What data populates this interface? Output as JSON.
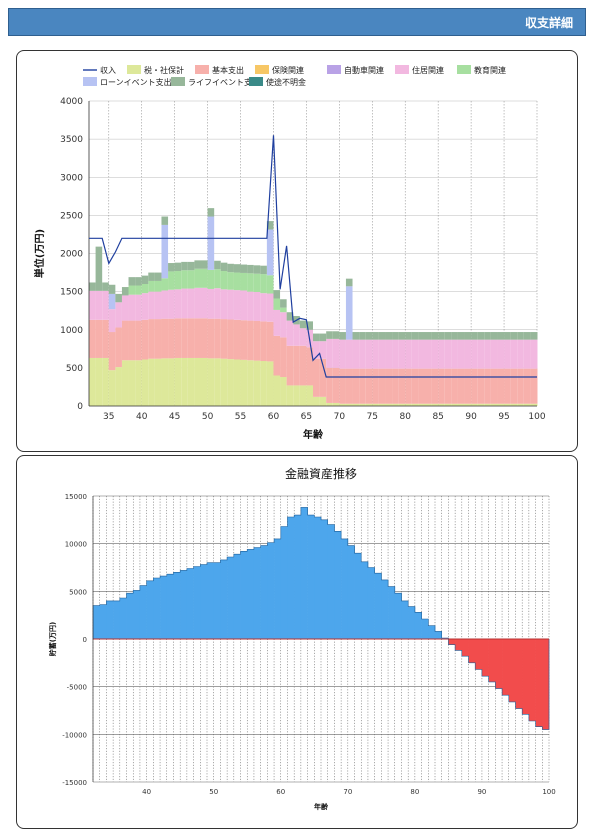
{
  "header": {
    "title": "収支詳細"
  },
  "colors": {
    "header": "#4a86c0",
    "income_line": "#1f3f9f",
    "tax": "#dde89a",
    "basic": "#f7b0ab",
    "insurance": "#f7c766",
    "car": "#b9a2e6",
    "housing": "#f2b8e0",
    "education": "#a7dfa0",
    "loan_event": "#b7c3f3",
    "life_event": "#97b79a",
    "unknown": "#3a8a88",
    "assets_positive": "#4da6ec",
    "assets_negative": "#f24c4c"
  },
  "chart_data": [
    {
      "type": "area",
      "stacked": true,
      "title": "",
      "xlabel": "年齢",
      "ylabel": "単位(万円)",
      "xlim": [
        32,
        100
      ],
      "ylim": [
        0,
        4000
      ],
      "xticks": [
        35,
        40,
        45,
        50,
        55,
        60,
        65,
        70,
        75,
        80,
        85,
        90,
        95,
        100
      ],
      "yticks": [
        0,
        500,
        1000,
        1500,
        2000,
        2500,
        3000,
        3500,
        4000
      ],
      "grid": true,
      "legend_position": "top",
      "legend_rows": [
        [
          "収入",
          "税・社保計",
          "基本支出",
          "保険関連",
          "自動車関連",
          "住居関連",
          "教育関連"
        ],
        [
          "ローンイベント支出",
          "ライフイベント支出",
          "使途不明金"
        ]
      ],
      "x": [
        32,
        33,
        34,
        35,
        36,
        37,
        38,
        39,
        40,
        41,
        42,
        43,
        44,
        45,
        46,
        47,
        48,
        49,
        50,
        51,
        52,
        53,
        54,
        55,
        56,
        57,
        58,
        59,
        60,
        61,
        62,
        63,
        64,
        65,
        66,
        67,
        68,
        69,
        70,
        71,
        72,
        73,
        74,
        75,
        76,
        77,
        78,
        79,
        80,
        81,
        82,
        83,
        84,
        85,
        86,
        87,
        88,
        89,
        90,
        91,
        92,
        93,
        94,
        95,
        96,
        97,
        98,
        99,
        100
      ],
      "line": {
        "name": "収入",
        "values": [
          2200,
          2200,
          2200,
          1870,
          2020,
          2200,
          2200,
          2200,
          2200,
          2200,
          2200,
          2200,
          2200,
          2200,
          2200,
          2200,
          2200,
          2200,
          2200,
          2200,
          2200,
          2200,
          2200,
          2200,
          2200,
          2200,
          2200,
          2200,
          3550,
          1530,
          2100,
          1100,
          1150,
          1130,
          600,
          690,
          380,
          380,
          380,
          380,
          380,
          380,
          380,
          380,
          380,
          380,
          380,
          380,
          380,
          380,
          380,
          380,
          380,
          380,
          380,
          380,
          380,
          380,
          380,
          380,
          380,
          380,
          380,
          380,
          380,
          380,
          380,
          380,
          380
        ]
      },
      "series": [
        {
          "name": "税・社保計",
          "color_key": "tax",
          "values": [
            630,
            630,
            630,
            470,
            510,
            600,
            600,
            600,
            610,
            620,
            620,
            625,
            625,
            630,
            630,
            630,
            630,
            630,
            625,
            625,
            620,
            615,
            610,
            605,
            600,
            595,
            590,
            585,
            400,
            380,
            270,
            270,
            270,
            270,
            120,
            120,
            40,
            40,
            30,
            30,
            30,
            30,
            30,
            30,
            30,
            30,
            30,
            30,
            30,
            30,
            30,
            30,
            30,
            30,
            30,
            30,
            30,
            30,
            30,
            30,
            30,
            30,
            30,
            30,
            30,
            30,
            30,
            30,
            30
          ]
        },
        {
          "name": "基本支出",
          "color_key": "basic",
          "values": [
            500,
            500,
            500,
            500,
            520,
            520,
            520,
            520,
            520,
            520,
            520,
            520,
            520,
            520,
            520,
            520,
            520,
            520,
            520,
            520,
            520,
            520,
            520,
            520,
            520,
            520,
            520,
            520,
            520,
            520,
            520,
            520,
            520,
            500,
            500,
            500,
            460,
            460,
            460,
            460,
            460,
            460,
            460,
            460,
            460,
            460,
            460,
            460,
            460,
            460,
            460,
            460,
            460,
            460,
            460,
            460,
            460,
            460,
            460,
            460,
            460,
            460,
            460,
            460,
            460,
            460,
            460,
            460,
            460
          ]
        },
        {
          "name": "保険関連",
          "color_key": "insurance",
          "values": [
            0,
            0,
            0,
            0,
            0,
            0,
            0,
            0,
            0,
            0,
            0,
            0,
            0,
            0,
            0,
            0,
            0,
            0,
            0,
            0,
            0,
            0,
            0,
            0,
            0,
            0,
            0,
            0,
            0,
            0,
            0,
            0,
            0,
            0,
            0,
            0,
            0,
            0,
            0,
            0,
            0,
            0,
            0,
            0,
            0,
            0,
            0,
            0,
            0,
            0,
            0,
            0,
            0,
            0,
            0,
            0,
            0,
            0,
            0,
            0,
            0,
            0,
            0,
            0,
            0,
            0,
            0,
            0,
            0
          ]
        },
        {
          "name": "自動車関連",
          "color_key": "car",
          "values": [
            0,
            0,
            0,
            0,
            0,
            0,
            0,
            0,
            0,
            0,
            0,
            0,
            0,
            0,
            0,
            0,
            0,
            0,
            0,
            0,
            0,
            0,
            0,
            0,
            0,
            0,
            0,
            0,
            0,
            0,
            0,
            0,
            0,
            0,
            0,
            0,
            0,
            0,
            0,
            0,
            0,
            0,
            0,
            0,
            0,
            0,
            0,
            0,
            0,
            0,
            0,
            0,
            0,
            0,
            0,
            0,
            0,
            0,
            0,
            0,
            0,
            0,
            0,
            0,
            0,
            0,
            0,
            0,
            0
          ]
        },
        {
          "name": "住居関連",
          "color_key": "housing",
          "values": [
            380,
            380,
            380,
            300,
            330,
            330,
            340,
            340,
            350,
            360,
            360,
            370,
            380,
            380,
            390,
            390,
            400,
            400,
            390,
            400,
            390,
            390,
            390,
            390,
            380,
            380,
            370,
            370,
            340,
            330,
            330,
            280,
            230,
            230,
            230,
            230,
            380,
            380,
            380,
            380,
            380,
            380,
            380,
            380,
            380,
            380,
            380,
            380,
            380,
            380,
            380,
            380,
            380,
            380,
            380,
            380,
            380,
            380,
            380,
            380,
            380,
            380,
            380,
            380,
            380,
            380,
            380,
            380,
            380
          ]
        },
        {
          "name": "教育関連",
          "color_key": "education",
          "values": [
            0,
            0,
            0,
            0,
            0,
            0,
            120,
            120,
            120,
            140,
            140,
            160,
            240,
            240,
            240,
            240,
            250,
            250,
            250,
            250,
            240,
            230,
            230,
            230,
            240,
            240,
            250,
            240,
            150,
            60,
            0,
            0,
            0,
            0,
            0,
            0,
            0,
            0,
            0,
            0,
            0,
            0,
            0,
            0,
            0,
            0,
            0,
            0,
            0,
            0,
            0,
            0,
            0,
            0,
            0,
            0,
            0,
            0,
            0,
            0,
            0,
            0,
            0,
            0,
            0,
            0,
            0,
            0,
            0
          ]
        },
        {
          "name": "ローンイベント支出",
          "color_key": "loan_event",
          "values": [
            0,
            0,
            0,
            200,
            0,
            0,
            0,
            0,
            0,
            0,
            0,
            700,
            0,
            0,
            0,
            0,
            0,
            0,
            700,
            0,
            0,
            0,
            0,
            0,
            0,
            0,
            0,
            600,
            0,
            0,
            0,
            0,
            0,
            0,
            0,
            0,
            0,
            0,
            0,
            700,
            0,
            0,
            0,
            0,
            0,
            0,
            0,
            0,
            0,
            0,
            0,
            0,
            0,
            0,
            0,
            0,
            0,
            0,
            0,
            0,
            0,
            0,
            0,
            0,
            0,
            0,
            0,
            0,
            0
          ]
        },
        {
          "name": "ライフイベント支出",
          "color_key": "life_event",
          "values": [
            110,
            580,
            110,
            120,
            110,
            110,
            110,
            110,
            110,
            110,
            110,
            110,
            110,
            110,
            110,
            110,
            110,
            110,
            110,
            110,
            110,
            110,
            110,
            110,
            110,
            110,
            110,
            110,
            110,
            110,
            110,
            110,
            100,
            110,
            100,
            100,
            100,
            100,
            100,
            100,
            100,
            100,
            100,
            100,
            100,
            100,
            100,
            100,
            100,
            100,
            100,
            100,
            100,
            100,
            100,
            100,
            100,
            100,
            100,
            100,
            100,
            100,
            100,
            100,
            100,
            100,
            100,
            100,
            100
          ]
        },
        {
          "name": "使途不明金",
          "color_key": "unknown",
          "values": [
            0,
            0,
            0,
            0,
            0,
            0,
            0,
            0,
            0,
            0,
            0,
            0,
            0,
            0,
            0,
            0,
            0,
            0,
            0,
            0,
            0,
            0,
            0,
            0,
            0,
            0,
            0,
            0,
            0,
            0,
            0,
            0,
            0,
            0,
            0,
            0,
            0,
            0,
            0,
            0,
            0,
            0,
            0,
            0,
            0,
            0,
            0,
            0,
            0,
            0,
            0,
            0,
            0,
            0,
            0,
            0,
            0,
            0,
            0,
            0,
            0,
            0,
            0,
            0,
            0,
            0,
            0,
            0,
            0
          ]
        }
      ]
    },
    {
      "type": "bar",
      "title": "金融資産推移",
      "xlabel": "年齢",
      "ylabel": "貯蓄(万円)",
      "xlim": [
        32,
        100
      ],
      "ylim": [
        -15000,
        15000
      ],
      "xticks": [
        40,
        50,
        60,
        70,
        80,
        90,
        100
      ],
      "yticks": [
        -15000,
        -10000,
        -5000,
        0,
        5000,
        10000,
        15000
      ],
      "grid": true,
      "x": [
        32,
        33,
        34,
        35,
        36,
        37,
        38,
        39,
        40,
        41,
        42,
        43,
        44,
        45,
        46,
        47,
        48,
        49,
        50,
        51,
        52,
        53,
        54,
        55,
        56,
        57,
        58,
        59,
        60,
        61,
        62,
        63,
        64,
        65,
        66,
        67,
        68,
        69,
        70,
        71,
        72,
        73,
        74,
        75,
        76,
        77,
        78,
        79,
        80,
        81,
        82,
        83,
        84,
        85,
        86,
        87,
        88,
        89,
        90,
        91,
        92,
        93,
        94,
        95,
        96,
        97,
        98,
        99
      ],
      "values": [
        3500,
        3600,
        4000,
        4000,
        4300,
        4800,
        5100,
        5600,
        6100,
        6400,
        6600,
        6800,
        7000,
        7200,
        7400,
        7600,
        7800,
        8000,
        8000,
        8300,
        8600,
        8900,
        9200,
        9400,
        9600,
        9800,
        10100,
        10500,
        11800,
        12800,
        13000,
        13800,
        13000,
        12800,
        12500,
        12000,
        11300,
        10500,
        9800,
        9000,
        8100,
        7500,
        6900,
        6200,
        5500,
        4800,
        4000,
        3400,
        2800,
        2100,
        1400,
        800,
        100,
        -600,
        -1200,
        -1800,
        -2500,
        -3200,
        -3900,
        -4500,
        -5200,
        -5900,
        -6600,
        -7300,
        -7900,
        -8600,
        -9200,
        -9500
      ]
    }
  ]
}
